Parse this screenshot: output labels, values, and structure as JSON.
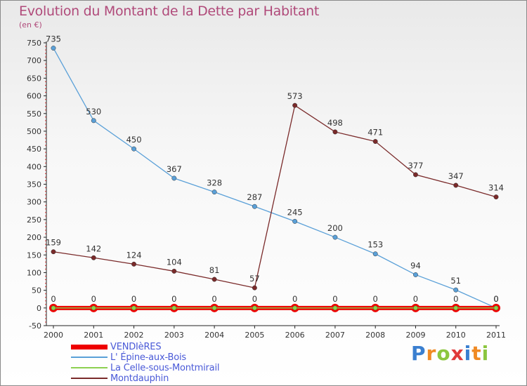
{
  "header": {
    "title": "Evolution du Montant de la Dette par Habitant",
    "unit": "(en €)"
  },
  "brand": {
    "letters": [
      "P",
      "r",
      "o",
      "x",
      "i",
      "t",
      "i"
    ],
    "colors": [
      "#3a7fd0",
      "#f08a24",
      "#8cc63f",
      "#e03a3a",
      "#3a7fd0",
      "#f08a24",
      "#8cc63f"
    ]
  },
  "chart_data": {
    "type": "line",
    "title": "Evolution du Montant de la Dette par Habitant",
    "ylabel": "(en €)",
    "xlabel": "",
    "x": [
      "2000",
      "2001",
      "2002",
      "2003",
      "2004",
      "2005",
      "2006",
      "2007",
      "2008",
      "2009",
      "2010",
      "2011"
    ],
    "yticks": [
      "750",
      "700",
      "650",
      "600",
      "550",
      "500",
      "450",
      "400",
      "350",
      "300",
      "250",
      "200",
      "150",
      "100",
      "50",
      "0",
      "-50"
    ],
    "ylim": [
      -50,
      750
    ],
    "grid": false,
    "legend_position": "bottom-left",
    "series": [
      {
        "name": "VENDIèRES",
        "color": "#ee0000",
        "values": [
          0,
          0,
          0,
          0,
          0,
          0,
          0,
          0,
          0,
          0,
          0,
          0
        ]
      },
      {
        "name": "L' Épine-aux-Bois",
        "color": "#5aa0d8",
        "values": [
          735,
          530,
          450,
          367,
          328,
          287,
          245,
          200,
          153,
          94,
          51,
          0
        ]
      },
      {
        "name": "La Celle-sous-Montmirail",
        "color": "#8cd050",
        "values": [
          0,
          0,
          0,
          0,
          0,
          0,
          0,
          0,
          0,
          0,
          0,
          0
        ]
      },
      {
        "name": "Montdauphin",
        "color": "#7a2a2a",
        "values": [
          159,
          142,
          124,
          104,
          81,
          57,
          573,
          498,
          471,
          377,
          347,
          314
        ]
      }
    ]
  }
}
